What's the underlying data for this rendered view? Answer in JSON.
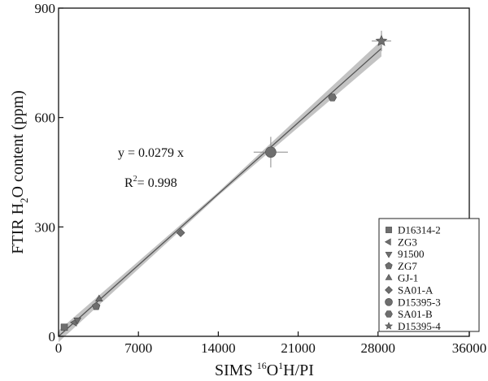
{
  "chart_data": {
    "type": "scatter",
    "x_axis": {
      "label_parts": [
        "SIMS ",
        "16",
        "O",
        "1",
        "H/PI"
      ],
      "range": [
        0,
        36000
      ],
      "ticks": [
        0,
        7000,
        14000,
        21000,
        28000,
        36000
      ],
      "tick_labels": [
        "0",
        "7000",
        "14000",
        "21000",
        "28000",
        "36000"
      ]
    },
    "y_axis": {
      "label_parts": [
        "FTIR H",
        "2",
        "O content (ppm)"
      ],
      "range": [
        0,
        900
      ],
      "ticks": [
        0,
        300,
        600,
        900
      ],
      "tick_labels": [
        "0",
        "300",
        "600",
        "900"
      ]
    },
    "grid": false,
    "legend_position": "bottom-right",
    "fit": {
      "slope": 0.0279,
      "equation": "y = 0.0279 x",
      "r2_prefix": "R",
      "r2_sup": "2",
      "r2_value": "= 0.998",
      "confidence_band": true
    },
    "series": [
      {
        "name": "D16314-2",
        "marker": "square",
        "points": [
          {
            "x": 500,
            "y": 25
          }
        ]
      },
      {
        "name": "ZG3",
        "marker": "triangle-left",
        "points": [
          {
            "x": 1400,
            "y": 38
          }
        ]
      },
      {
        "name": "91500",
        "marker": "triangle-down",
        "points": [
          {
            "x": 1650,
            "y": 45
          }
        ]
      },
      {
        "name": "ZG7",
        "marker": "pentagon",
        "points": [
          {
            "x": 3300,
            "y": 82
          }
        ]
      },
      {
        "name": "GJ-1",
        "marker": "triangle-up",
        "points": [
          {
            "x": 3550,
            "y": 102
          }
        ]
      },
      {
        "name": "SA01-A",
        "marker": "diamond",
        "points": [
          {
            "x": 10700,
            "y": 284
          }
        ]
      },
      {
        "name": "D15395-3",
        "marker": "circle",
        "points": [
          {
            "x": 18600,
            "y": 505,
            "xerr": 1500,
            "yerr": 42
          }
        ]
      },
      {
        "name": "SA01-B",
        "marker": "hexagon",
        "points": [
          {
            "x": 24000,
            "y": 655
          }
        ]
      },
      {
        "name": "D15395-4",
        "marker": "star",
        "points": [
          {
            "x": 28300,
            "y": 810,
            "xerr": 850,
            "yerr": 28
          }
        ]
      }
    ],
    "colors": {
      "marker": "#6e6e6e",
      "fit_line": "#555555",
      "band": "#b4b4b4",
      "axis": "#111111"
    }
  }
}
